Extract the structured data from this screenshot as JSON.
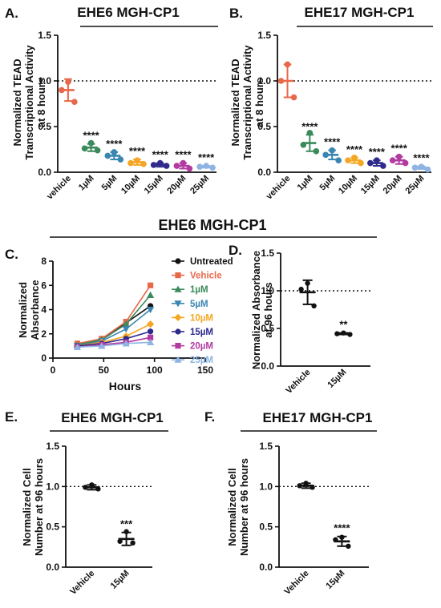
{
  "figure": {
    "section_title": "EHE6 MGH-CP1"
  },
  "chart_data": [
    {
      "panel_id": "A",
      "panel_letter": "A.",
      "type": "scatter",
      "title": "EHE6 MGH-CP1",
      "ylabel": [
        "Normalized TEAD",
        "Transcriptional Activity",
        "at 8 hours"
      ],
      "xlabel": "",
      "ylim": [
        0,
        1.5
      ],
      "yticks": [
        "0.0",
        "0.5",
        "1.0",
        "1.5"
      ],
      "categories": [
        "vehicle",
        "1µM",
        "5µM",
        "10µM",
        "15µM",
        "20µM",
        "25µM"
      ],
      "colors": [
        "#e8684a",
        "#3a8a5b",
        "#3a86b0",
        "#f5a623",
        "#2e2a8c",
        "#b23aa0",
        "#8fb4e3"
      ],
      "points": [
        [
          0.99,
          0.9,
          0.77
        ],
        [
          0.32,
          0.26,
          0.24
        ],
        [
          0.22,
          0.18,
          0.14
        ],
        [
          0.13,
          0.1,
          0.09
        ],
        [
          0.1,
          0.08,
          0.07
        ],
        [
          0.1,
          0.07,
          0.04
        ],
        [
          0.07,
          0.06,
          0.05
        ]
      ],
      "mean": [
        0.9,
        0.27,
        0.18,
        0.11,
        0.08,
        0.07,
        0.06
      ],
      "err": [
        0.12,
        0.04,
        0.04,
        0.03,
        0.02,
        0.03,
        0.01
      ],
      "sig": [
        "",
        "****",
        "****",
        "****",
        "****",
        "****",
        "****"
      ],
      "reference_line": 1.0
    },
    {
      "panel_id": "B",
      "panel_letter": "B.",
      "type": "scatter",
      "title": "EHE17 MGH-CP1",
      "ylabel": [
        "Normalized TEAD",
        "Transcriptional Activity",
        "at 8 hours"
      ],
      "xlabel": "",
      "ylim": [
        0,
        1.5
      ],
      "yticks": [
        "0.0",
        "0.5",
        "1.0",
        "1.5"
      ],
      "categories": [
        "vehicle",
        "1µM",
        "5µM",
        "10µM",
        "15µM",
        "20µM",
        "25µM"
      ],
      "colors": [
        "#e8684a",
        "#3a8a5b",
        "#3a86b0",
        "#f5a623",
        "#2e2a8c",
        "#b23aa0",
        "#8fb4e3"
      ],
      "points": [
        [
          1.18,
          1.0,
          0.82
        ],
        [
          0.43,
          0.3,
          0.23
        ],
        [
          0.24,
          0.19,
          0.13
        ],
        [
          0.16,
          0.13,
          0.1
        ],
        [
          0.13,
          0.1,
          0.07
        ],
        [
          0.17,
          0.13,
          0.1
        ],
        [
          0.06,
          0.05,
          0.03
        ]
      ],
      "mean": [
        1.0,
        0.32,
        0.19,
        0.13,
        0.1,
        0.13,
        0.05
      ],
      "err": [
        0.18,
        0.09,
        0.05,
        0.03,
        0.03,
        0.04,
        0.015
      ],
      "sig": [
        "",
        "****",
        "****",
        "****",
        "****",
        "****",
        "****"
      ],
      "reference_line": 1.0
    },
    {
      "panel_id": "C",
      "panel_letter": "C.",
      "type": "line",
      "title": "",
      "ylabel": [
        "Normalized",
        "Absorbance"
      ],
      "xlabel": "Hours",
      "xlim": [
        0,
        150
      ],
      "ylim": [
        0,
        8
      ],
      "xticks": [
        "0",
        "50",
        "100",
        "150"
      ],
      "yticks": [
        "0",
        "2",
        "4",
        "6",
        "8"
      ],
      "x": [
        24,
        48,
        72,
        96
      ],
      "series": [
        {
          "name": "Untreated",
          "color": "#111111",
          "marker": "circle",
          "values": [
            1.1,
            1.5,
            2.9,
            4.3
          ]
        },
        {
          "name": "Vehicle",
          "color": "#e8684a",
          "marker": "square",
          "values": [
            1.2,
            1.6,
            3.0,
            6.0
          ]
        },
        {
          "name": "1µM",
          "color": "#3a8a5b",
          "marker": "triangle-up",
          "values": [
            1.1,
            1.5,
            2.8,
            5.2
          ]
        },
        {
          "name": "5µM",
          "color": "#3a86b0",
          "marker": "triangle-down",
          "values": [
            1.0,
            1.4,
            2.4,
            4.0
          ]
        },
        {
          "name": "10µM",
          "color": "#f5a623",
          "marker": "diamond",
          "values": [
            1.0,
            1.3,
            1.8,
            2.8
          ]
        },
        {
          "name": "15µM",
          "color": "#2e2a8c",
          "marker": "circle",
          "values": [
            1.0,
            1.2,
            1.6,
            2.2
          ]
        },
        {
          "name": "20µM",
          "color": "#b23aa0",
          "marker": "square",
          "values": [
            0.9,
            1.1,
            1.3,
            1.7
          ]
        },
        {
          "name": "25µM",
          "color": "#8fb4e3",
          "marker": "triangle-up",
          "values": [
            0.9,
            1.0,
            1.2,
            1.3
          ]
        }
      ],
      "legend_position": "right"
    },
    {
      "panel_id": "D",
      "panel_letter": "D.",
      "type": "scatter",
      "title": "",
      "ylabel": [
        "Normalized Absorbance",
        "at 96 hours"
      ],
      "xlabel": "",
      "ylim": [
        0,
        1.5
      ],
      "yticks": [
        "0.0",
        "0.5",
        "1.0",
        "1.5"
      ],
      "categories": [
        "Vehicle",
        "15µM"
      ],
      "colors": [
        "#111111",
        "#111111"
      ],
      "points": [
        [
          1.1,
          1.02,
          0.8
        ],
        [
          0.44,
          0.43,
          0.42
        ]
      ],
      "mean": [
        0.98,
        0.43
      ],
      "err": [
        0.16,
        0.01
      ],
      "sig": [
        "",
        "**"
      ],
      "reference_line": 1.0
    },
    {
      "panel_id": "E",
      "panel_letter": "E.",
      "type": "scatter",
      "title": "EHE6 MGH-CP1",
      "ylabel": [
        "Normalized Cell",
        "Number at 96 hours"
      ],
      "xlabel": "",
      "ylim": [
        0,
        1.5
      ],
      "yticks": [
        "0.0",
        "0.5",
        "1.0",
        "1.5"
      ],
      "categories": [
        "Vehicle",
        "15µM"
      ],
      "colors": [
        "#111111",
        "#111111"
      ],
      "points": [
        [
          1.02,
          0.99,
          0.97
        ],
        [
          0.44,
          0.32,
          0.3
        ]
      ],
      "mean": [
        0.99,
        0.35
      ],
      "err": [
        0.03,
        0.08
      ],
      "sig": [
        "",
        "***"
      ],
      "reference_line": 1.0
    },
    {
      "panel_id": "F",
      "panel_letter": "F.",
      "type": "scatter",
      "title": "EHE17 MGH-CP1",
      "ylabel": [
        "Normalized Cell",
        "Number at 96 hours"
      ],
      "xlabel": "",
      "ylim": [
        0,
        1.5
      ],
      "yticks": [
        "0.0",
        "0.5",
        "1.0",
        "1.5"
      ],
      "categories": [
        "Vehicle",
        "15µM"
      ],
      "colors": [
        "#111111",
        "#111111"
      ],
      "points": [
        [
          1.04,
          1.01,
          0.99
        ],
        [
          0.37,
          0.34,
          0.26
        ]
      ],
      "mean": [
        1.01,
        0.32
      ],
      "err": [
        0.03,
        0.06
      ],
      "sig": [
        "",
        "****"
      ],
      "reference_line": 1.0
    }
  ]
}
